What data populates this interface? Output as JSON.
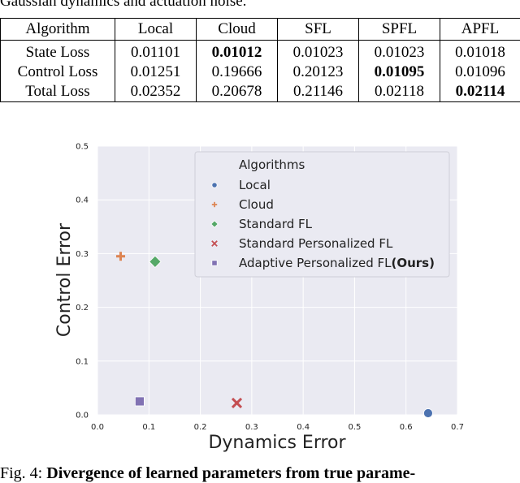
{
  "top_text": "Gaussian dynamics and actuation noise.",
  "table": {
    "headers": [
      "Algorithm",
      "Local",
      "Cloud",
      "SFL",
      "SPFL",
      "APFL"
    ],
    "rows": [
      {
        "cells": [
          "State Loss",
          "0.01101",
          "0.01012",
          "0.01023",
          "0.01023",
          "0.01018"
        ],
        "bold": [
          2
        ]
      },
      {
        "cells": [
          "Control Loss",
          "0.01251",
          "0.19666",
          "0.20123",
          "0.01095",
          "0.01096"
        ],
        "bold": [
          4
        ]
      },
      {
        "cells": [
          "Total Loss",
          "0.02352",
          "0.20678",
          "0.21146",
          "0.02118",
          "0.02114"
        ],
        "bold": [
          5
        ]
      }
    ]
  },
  "chart_data": {
    "type": "scatter",
    "xlabel": "Dynamics Error",
    "ylabel": "Control Error",
    "xlim": [
      0,
      0.7
    ],
    "ylim": [
      0,
      0.5
    ],
    "xticks": [
      "0.0",
      "0.1",
      "0.2",
      "0.3",
      "0.4",
      "0.5",
      "0.6",
      "0.7"
    ],
    "yticks": [
      "0.0",
      "0.1",
      "0.2",
      "0.3",
      "0.4",
      "0.5"
    ],
    "grid": true,
    "background": "#eaeaf2",
    "legend_title": "Algorithms",
    "legend_placement": "upper-right",
    "series": [
      {
        "name": "Local",
        "x": 0.643,
        "y": 0.003,
        "marker": "circle",
        "color": "#4c72b0"
      },
      {
        "name": "Cloud",
        "x": 0.045,
        "y": 0.295,
        "marker": "plus",
        "color": "#dd8452"
      },
      {
        "name": "Standard FL",
        "x": 0.112,
        "y": 0.285,
        "marker": "diamond",
        "color": "#55a868"
      },
      {
        "name": "Standard Personalized FL",
        "x": 0.271,
        "y": 0.022,
        "marker": "x",
        "color": "#c44e52"
      },
      {
        "name": "Adaptive Personalized FL",
        "name_bold_suffix": "(Ours)",
        "x": 0.082,
        "y": 0.025,
        "marker": "square",
        "color": "#8172b3"
      }
    ]
  },
  "caption": {
    "label": "Fig. 4:",
    "bold_text": "Divergence of learned parameters from true parame-"
  }
}
